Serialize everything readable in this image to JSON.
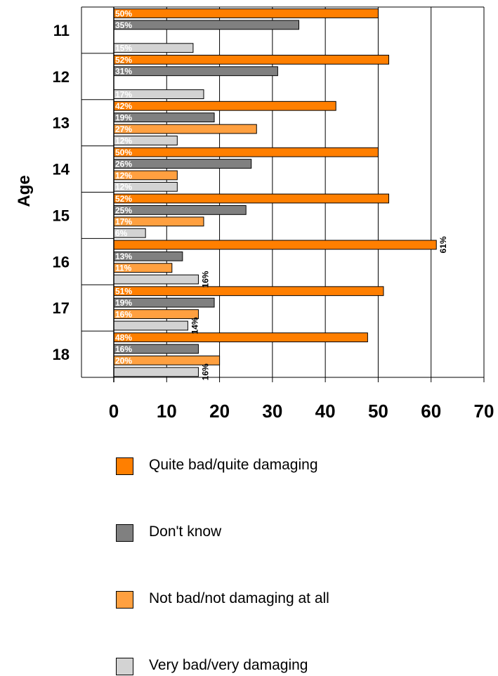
{
  "chart_data": {
    "type": "bar",
    "orientation": "horizontal",
    "ylabel": "Age",
    "categories": [
      "11",
      "12",
      "13",
      "14",
      "15",
      "16",
      "17",
      "18"
    ],
    "xlim": [
      0,
      70
    ],
    "x_ticks": [
      "0",
      "10",
      "20",
      "30",
      "40",
      "50",
      "60",
      "70"
    ],
    "grid": true,
    "legend_position": "bottom",
    "series": [
      {
        "name": "Quite bad/quite damaging",
        "color": "#ff7f00",
        "values": [
          50,
          52,
          42,
          50,
          52,
          61,
          51,
          48
        ],
        "labels": [
          "50%",
          "52%",
          "42%",
          "50%",
          "52%",
          "61%",
          "51%",
          "48%"
        ]
      },
      {
        "name": "Don't know",
        "color": "#808080",
        "values": [
          35,
          31,
          19,
          26,
          25,
          13,
          19,
          16
        ],
        "labels": [
          "35%",
          "31%",
          "19%",
          "26%",
          "25%",
          "13%",
          "19%",
          "16%"
        ]
      },
      {
        "name": "Not bad/not damaging at all",
        "color": "#ffa040",
        "values": [
          0,
          0,
          27,
          12,
          17,
          11,
          16,
          20
        ],
        "labels": [
          "",
          "",
          "27%",
          "12%",
          "17%",
          "11%",
          "16%",
          "20%"
        ]
      },
      {
        "name": "Very bad/very damaging",
        "color": "#d3d3d3",
        "values": [
          15,
          17,
          12,
          12,
          6,
          16,
          14,
          16
        ],
        "labels": [
          "15%",
          "17%",
          "12%",
          "12%",
          "6%",
          "16%",
          "14%",
          "16%"
        ]
      }
    ]
  }
}
